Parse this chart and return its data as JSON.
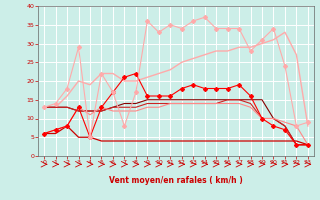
{
  "bg_color": "#cceee8",
  "grid_color": "#ffffff",
  "xlabel": "Vent moyen/en rafales ( km/h )",
  "xlabel_color": "#cc0000",
  "tick_color": "#cc0000",
  "xlim": [
    -0.5,
    23.5
  ],
  "ylim": [
    0,
    40
  ],
  "yticks": [
    0,
    5,
    10,
    15,
    20,
    25,
    30,
    35,
    40
  ],
  "xticks": [
    0,
    1,
    2,
    3,
    4,
    5,
    6,
    7,
    8,
    9,
    10,
    11,
    12,
    13,
    14,
    15,
    16,
    17,
    18,
    19,
    20,
    21,
    22,
    23
  ],
  "lines": [
    {
      "x": [
        0,
        1,
        2,
        3,
        4,
        5,
        6,
        7,
        8,
        9,
        10,
        11,
        12,
        13,
        14,
        15,
        16,
        17,
        18,
        19,
        20,
        21,
        22,
        23
      ],
      "y": [
        6,
        7,
        8,
        13,
        5,
        13,
        17,
        21,
        22,
        16,
        16,
        16,
        18,
        19,
        18,
        18,
        18,
        19,
        16,
        10,
        8,
        7,
        3,
        3
      ],
      "color": "#ff0000",
      "lw": 0.8,
      "marker": "D",
      "ms": 2.0,
      "zorder": 5
    },
    {
      "x": [
        0,
        1,
        2,
        3,
        4,
        5,
        6,
        7,
        8,
        9,
        10,
        11,
        12,
        13,
        14,
        15,
        16,
        17,
        18,
        19,
        20,
        21,
        22,
        23
      ],
      "y": [
        13,
        13,
        13,
        12,
        12,
        12,
        13,
        14,
        14,
        15,
        15,
        15,
        15,
        15,
        15,
        15,
        15,
        15,
        15,
        15,
        10,
        8,
        3,
        3
      ],
      "color": "#880000",
      "lw": 0.8,
      "marker": null,
      "ms": 0,
      "zorder": 4
    },
    {
      "x": [
        0,
        1,
        2,
        3,
        4,
        5,
        6,
        7,
        8,
        9,
        10,
        11,
        12,
        13,
        14,
        15,
        16,
        17,
        18,
        19,
        20,
        21,
        22,
        23
      ],
      "y": [
        13,
        13,
        13,
        12,
        12,
        12,
        13,
        13,
        13,
        14,
        14,
        14,
        14,
        14,
        14,
        14,
        15,
        15,
        14,
        10,
        10,
        8,
        3,
        3
      ],
      "color": "#cc2222",
      "lw": 0.8,
      "marker": null,
      "ms": 0,
      "zorder": 4
    },
    {
      "x": [
        0,
        1,
        2,
        3,
        4,
        5,
        6,
        7,
        8,
        9,
        10,
        11,
        12,
        13,
        14,
        15,
        16,
        17,
        18,
        19,
        20,
        21,
        22,
        23
      ],
      "y": [
        6,
        6,
        8,
        5,
        5,
        4,
        4,
        4,
        4,
        4,
        4,
        4,
        4,
        4,
        4,
        4,
        4,
        4,
        4,
        4,
        4,
        4,
        4,
        3
      ],
      "color": "#cc0000",
      "lw": 0.9,
      "marker": null,
      "ms": 0,
      "zorder": 3
    },
    {
      "x": [
        0,
        1,
        2,
        3,
        4,
        5,
        6,
        7,
        8,
        9,
        10,
        11,
        12,
        13,
        14,
        15,
        16,
        17,
        18,
        19,
        20,
        21,
        22,
        23
      ],
      "y": [
        13,
        14,
        18,
        29,
        5,
        22,
        17,
        8,
        17,
        36,
        33,
        35,
        34,
        36,
        37,
        34,
        34,
        34,
        28,
        31,
        34,
        24,
        8,
        9
      ],
      "color": "#ffaaaa",
      "lw": 0.8,
      "marker": "D",
      "ms": 2.0,
      "zorder": 5
    },
    {
      "x": [
        0,
        1,
        2,
        3,
        4,
        5,
        6,
        7,
        8,
        9,
        10,
        11,
        12,
        13,
        14,
        15,
        16,
        17,
        18,
        19,
        20,
        21,
        22,
        23
      ],
      "y": [
        13,
        13,
        16,
        20,
        19,
        22,
        22,
        20,
        20,
        21,
        22,
        23,
        25,
        26,
        27,
        28,
        28,
        29,
        29,
        30,
        31,
        33,
        27,
        8
      ],
      "color": "#ffaaaa",
      "lw": 1.0,
      "marker": null,
      "ms": 0,
      "zorder": 3
    },
    {
      "x": [
        0,
        1,
        2,
        3,
        4,
        5,
        6,
        7,
        8,
        9,
        10,
        11,
        12,
        13,
        14,
        15,
        16,
        17,
        18,
        19,
        20,
        21,
        22,
        23
      ],
      "y": [
        6,
        7,
        8,
        13,
        11,
        13,
        12,
        12,
        12,
        13,
        13,
        14,
        14,
        14,
        14,
        14,
        14,
        14,
        13,
        10,
        10,
        9,
        8,
        3
      ],
      "color": "#ff8888",
      "lw": 0.8,
      "marker": null,
      "ms": 0,
      "zorder": 4
    }
  ]
}
